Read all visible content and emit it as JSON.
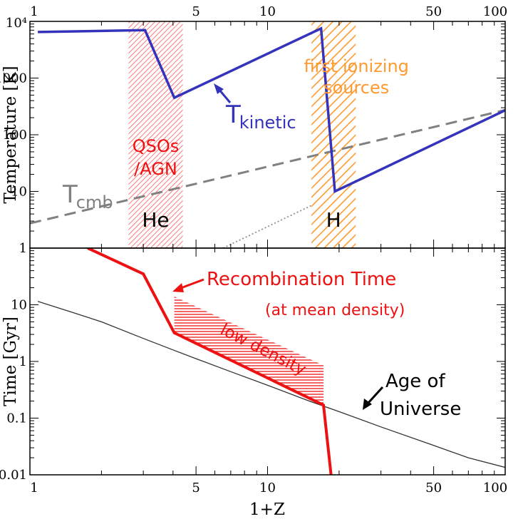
{
  "chart_data": [
    {
      "type": "line",
      "panel": "top",
      "ylabel": "Temperature [K]",
      "xscale": "log",
      "yscale": "log",
      "xlim": [
        1,
        100
      ],
      "ylim": [
        1,
        10000
      ],
      "x_ticks_top": [
        "1",
        "5",
        "10",
        "50",
        "100"
      ],
      "y_ticks": [
        "1",
        "10",
        "100",
        "1000",
        "10⁴"
      ],
      "series": [
        {
          "name": "T_kinetic",
          "color": "#3333bb",
          "x": [
            1.08,
            3.05,
            4.05,
            16.8,
            19.2,
            100
          ],
          "y": [
            6500,
            7000,
            450,
            7500,
            10,
            270
          ]
        },
        {
          "name": "T_cmb",
          "color": "#808080",
          "style": "dashed",
          "x": [
            1.0,
            100
          ],
          "y": [
            2.73,
            273
          ]
        },
        {
          "name": "",
          "color": "#808080",
          "style": "dotted",
          "x": [
            6.5,
            15.5
          ],
          "y": [
            1.0,
            5.8
          ]
        }
      ],
      "bands": [
        {
          "x_range": [
            2.6,
            4.4
          ],
          "color": "#ff5a5a",
          "top_label": "QSOs",
          "top_label_2": "/AGN",
          "bottom_label": "He"
        },
        {
          "x_range": [
            15.3,
            23.5
          ],
          "color": "#ff9a30",
          "top_label": "first ionizing",
          "top_label_2": "sources",
          "bottom_label": "H"
        }
      ],
      "annotations": {
        "tkin_main": "T",
        "tkin_sub": "kinetic",
        "tcmb_main": "T",
        "tcmb_sub": "cmb"
      }
    },
    {
      "type": "line",
      "panel": "bottom",
      "xlabel": "1+Z",
      "ylabel": "Time [Gyr]",
      "xscale": "log",
      "yscale": "log",
      "xlim": [
        1,
        100
      ],
      "ylim": [
        0.01,
        100
      ],
      "x_ticks": [
        "1",
        "5",
        "10",
        "50",
        "100"
      ],
      "y_ticks": [
        "0.01",
        "0.1",
        "1",
        "10"
      ],
      "series": [
        {
          "name": "Age of Universe",
          "color": "#333333",
          "x": [
            1.08,
            1.5,
            2,
            3,
            4,
            5,
            7,
            10,
            15,
            20,
            30,
            50,
            70,
            100
          ],
          "y": [
            11.5,
            7.4,
            5.0,
            2.55,
            1.6,
            1.12,
            0.66,
            0.38,
            0.2,
            0.13,
            0.07,
            0.033,
            0.02,
            0.0135
          ]
        },
        {
          "name": "Recombination Time",
          "color": "#ee1111",
          "x": [
            1.75,
            3.0,
            4.05,
            17.2,
            18.5
          ],
          "y": [
            100,
            35,
            3.2,
            0.17,
            0.01
          ]
        }
      ],
      "low_density_region": {
        "x_range": [
          4.05,
          17.2
        ],
        "upper_y": [
          14,
          0.85
        ],
        "color": "#ee1111"
      },
      "annotations": {
        "recomb_title": "Recombination Time",
        "recomb_sub": "(at mean density)",
        "low_density": "low density",
        "age_line1": "Age of",
        "age_line2": "Universe"
      }
    }
  ]
}
